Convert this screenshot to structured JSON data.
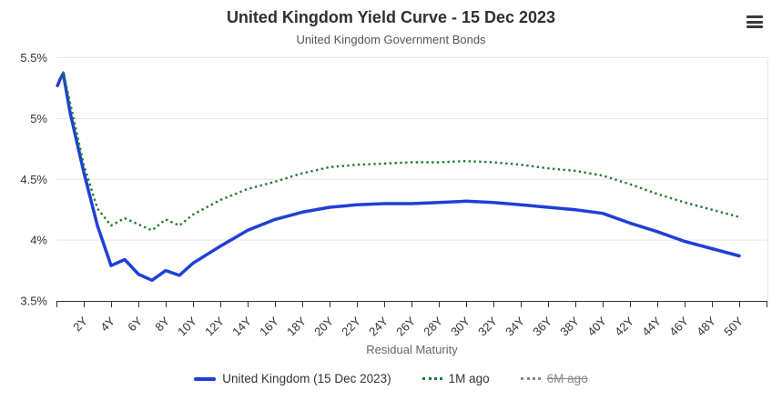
{
  "chart_data": {
    "type": "line",
    "title": "United Kingdom Yield Curve - 15 Dec 2023",
    "subtitle": "United Kingdom Government Bonds",
    "xlabel": "Residual Maturity",
    "ylabel": "",
    "grid": true,
    "legend_position": "bottom",
    "ylim": [
      3.5,
      5.5
    ],
    "xlim_years": [
      0,
      52
    ],
    "yticks": [
      {
        "value": 5.5,
        "label": "5.5%"
      },
      {
        "value": 5.0,
        "label": "5%"
      },
      {
        "value": 4.5,
        "label": "4.5%"
      },
      {
        "value": 4.0,
        "label": "4%"
      },
      {
        "value": 3.5,
        "label": "3.5%"
      }
    ],
    "xticks": [
      "2Y",
      "4Y",
      "6Y",
      "8Y",
      "10Y",
      "12Y",
      "14Y",
      "16Y",
      "18Y",
      "20Y",
      "22Y",
      "24Y",
      "26Y",
      "28Y",
      "30Y",
      "32Y",
      "34Y",
      "36Y",
      "38Y",
      "40Y",
      "42Y",
      "44Y",
      "46Y",
      "48Y",
      "50Y"
    ],
    "series": [
      {
        "name": "United Kingdom (15 Dec 2023)",
        "color": "#1f3fd8",
        "style": "solid",
        "disabled": false,
        "x": [
          0.08,
          0.25,
          0.5,
          1,
          2,
          3,
          4,
          5,
          6,
          7,
          8,
          9,
          10,
          12,
          14,
          16,
          18,
          20,
          22,
          24,
          26,
          28,
          30,
          32,
          34,
          36,
          38,
          40,
          42,
          44,
          46,
          48,
          50
        ],
        "values": [
          5.27,
          5.32,
          5.37,
          5.05,
          4.56,
          4.12,
          3.79,
          3.84,
          3.72,
          3.67,
          3.75,
          3.71,
          3.81,
          3.95,
          4.08,
          4.17,
          4.23,
          4.27,
          4.29,
          4.3,
          4.3,
          4.31,
          4.32,
          4.31,
          4.29,
          4.27,
          4.25,
          4.22,
          4.14,
          4.07,
          3.99,
          3.93,
          3.87
        ]
      },
      {
        "name": "1M ago",
        "color": "#1e7d32",
        "style": "dotted",
        "disabled": false,
        "x": [
          0.25,
          0.5,
          1,
          2,
          3,
          4,
          5,
          6,
          7,
          8,
          9,
          10,
          12,
          14,
          16,
          18,
          20,
          22,
          24,
          26,
          28,
          30,
          32,
          34,
          36,
          38,
          40,
          42,
          44,
          46,
          48,
          50
        ],
        "values": [
          5.33,
          5.38,
          5.13,
          4.62,
          4.26,
          4.12,
          4.18,
          4.13,
          4.08,
          4.17,
          4.12,
          4.21,
          4.33,
          4.42,
          4.48,
          4.55,
          4.6,
          4.62,
          4.63,
          4.64,
          4.64,
          4.65,
          4.64,
          4.62,
          4.59,
          4.57,
          4.53,
          4.46,
          4.38,
          4.31,
          4.25,
          4.19
        ]
      },
      {
        "name": "6M ago",
        "color": "#999999",
        "style": "dotted",
        "disabled": true,
        "x": [],
        "values": []
      }
    ],
    "colors": {
      "grid": "#e6e6e6",
      "axis": "#333333",
      "tick_text": "#333333",
      "muted_text": "#666666",
      "disabled_text": "#8a8a8a"
    }
  }
}
